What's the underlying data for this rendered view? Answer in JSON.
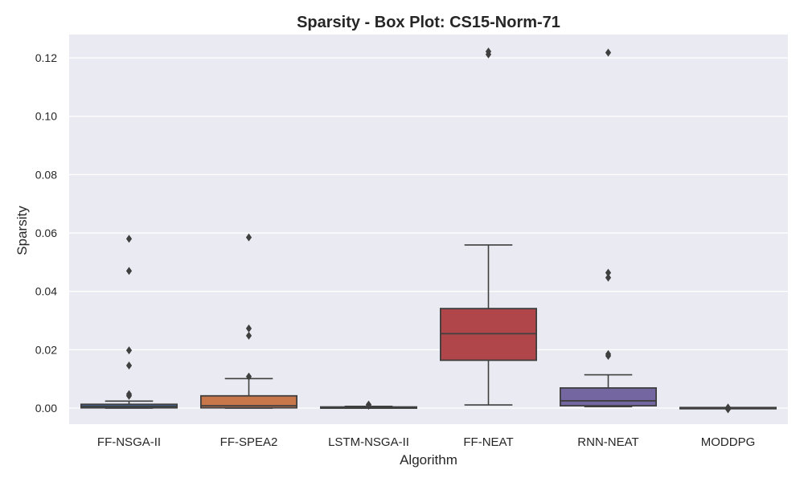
{
  "chart_data": {
    "type": "box",
    "title": "Sparsity - Box Plot: CS15-Norm-71",
    "xlabel": "Algorithm",
    "ylabel": "Sparsity",
    "ylim": [
      -0.0055,
      0.128
    ],
    "yticks": [
      0.0,
      0.02,
      0.04,
      0.06,
      0.08,
      0.1,
      0.12
    ],
    "ytick_labels": [
      "0.00",
      "0.02",
      "0.04",
      "0.06",
      "0.08",
      "0.10",
      "0.12"
    ],
    "grid": true,
    "categories": [
      "FF-NSGA-II",
      "FF-SPEA2",
      "LSTM-NSGA-II",
      "FF-NEAT",
      "RNN-NEAT",
      "MODDPG"
    ],
    "boxes": [
      {
        "name": "FF-NSGA-II",
        "color": "#4c72b0",
        "whisker_low": 0.0,
        "q1": 0.0001,
        "median": 0.0006,
        "q3": 0.0013,
        "whisker_high": 0.0024,
        "outliers": [
          0.0042,
          0.0048,
          0.0146,
          0.0198,
          0.047,
          0.058
        ]
      },
      {
        "name": "FF-SPEA2",
        "color": "#dd8452",
        "whisker_low": 0.0,
        "q1": 0.0001,
        "median": 0.0008,
        "q3": 0.0042,
        "whisker_high": 0.0101,
        "outliers": [
          0.0108,
          0.0248,
          0.0273,
          0.0585
        ]
      },
      {
        "name": "LSTM-NSGA-II",
        "color": "#55a868",
        "whisker_low": 0.0,
        "q1": 0.0001,
        "median": 0.0002,
        "q3": 0.0004,
        "whisker_high": 0.0006,
        "outliers": [
          0.0008,
          0.0012
        ]
      },
      {
        "name": "FF-NEAT",
        "color": "#c44e52",
        "whisker_low": 0.0011,
        "q1": 0.0164,
        "median": 0.0255,
        "q3": 0.0341,
        "whisker_high": 0.0559,
        "outliers": [
          0.1212,
          0.1222
        ]
      },
      {
        "name": "RNN-NEAT",
        "color": "#8172b3",
        "whisker_low": 0.0005,
        "q1": 0.0008,
        "median": 0.0025,
        "q3": 0.0069,
        "whisker_high": 0.0114,
        "outliers": [
          0.0179,
          0.0185,
          0.0447,
          0.0464,
          0.1218
        ]
      },
      {
        "name": "MODDPG",
        "color": "#937860",
        "whisker_low": 0.0,
        "q1": 0.0,
        "median": 0.0001,
        "q3": 0.0002,
        "whisker_high": 0.0002,
        "outliers": [
          -0.0004,
          0.0002
        ]
      }
    ]
  }
}
